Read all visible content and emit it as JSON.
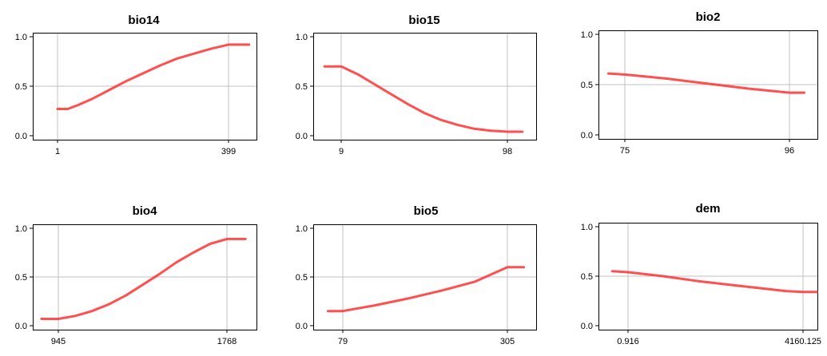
{
  "colors": {
    "curve": "#ff3030",
    "grid": "#c0c0c0",
    "axis": "#000000"
  },
  "chart_data": [
    {
      "type": "line",
      "title": "bio14",
      "xlabel": "",
      "ylabel": "",
      "x_ticks": [
        "1",
        "399"
      ],
      "y_ticks": [
        "0.0",
        "0.5",
        "1.0"
      ],
      "ylim": [
        0,
        1
      ],
      "grid": true,
      "x": [
        0.0,
        0.06,
        0.12,
        0.2,
        0.3,
        0.4,
        0.5,
        0.6,
        0.7,
        0.8,
        0.9,
        0.95,
        1.0,
        1.06,
        1.12
      ],
      "values": [
        0.27,
        0.27,
        0.31,
        0.37,
        0.46,
        0.55,
        0.63,
        0.71,
        0.78,
        0.83,
        0.88,
        0.9,
        0.92,
        0.92,
        0.92
      ]
    },
    {
      "type": "line",
      "title": "bio15",
      "xlabel": "",
      "ylabel": "",
      "x_ticks": [
        "9",
        "98"
      ],
      "y_ticks": [
        "0.0",
        "0.5",
        "1.0"
      ],
      "ylim": [
        0,
        1
      ],
      "grid": true,
      "x": [
        -0.1,
        0.0,
        0.1,
        0.2,
        0.3,
        0.4,
        0.5,
        0.6,
        0.7,
        0.8,
        0.9,
        1.0,
        1.09
      ],
      "values": [
        0.7,
        0.7,
        0.62,
        0.52,
        0.42,
        0.32,
        0.23,
        0.16,
        0.11,
        0.07,
        0.05,
        0.04,
        0.04
      ]
    },
    {
      "type": "line",
      "title": "bio2",
      "xlabel": "",
      "ylabel": "",
      "x_ticks": [
        "75",
        "96"
      ],
      "y_ticks": [
        "0.0",
        "0.5",
        "1.0"
      ],
      "ylim": [
        0,
        1
      ],
      "grid": true,
      "x": [
        -0.1,
        0.0,
        0.25,
        0.5,
        0.75,
        1.0,
        1.09
      ],
      "values": [
        0.61,
        0.6,
        0.56,
        0.51,
        0.46,
        0.42,
        0.42
      ]
    },
    {
      "type": "line",
      "title": "bio4",
      "xlabel": "",
      "ylabel": "",
      "x_ticks": [
        "945",
        "1768"
      ],
      "y_ticks": [
        "0.0",
        "0.5",
        "1.0"
      ],
      "ylim": [
        0,
        1
      ],
      "grid": true,
      "x": [
        -0.1,
        0.0,
        0.1,
        0.2,
        0.3,
        0.4,
        0.5,
        0.6,
        0.7,
        0.8,
        0.9,
        1.0,
        1.11
      ],
      "values": [
        0.07,
        0.07,
        0.1,
        0.15,
        0.22,
        0.31,
        0.42,
        0.53,
        0.65,
        0.75,
        0.84,
        0.89,
        0.89
      ]
    },
    {
      "type": "line",
      "title": "bio5",
      "xlabel": "",
      "ylabel": "",
      "x_ticks": [
        "79",
        "305"
      ],
      "y_ticks": [
        "0.0",
        "0.5",
        "1.0"
      ],
      "ylim": [
        0,
        1
      ],
      "grid": true,
      "x": [
        -0.09,
        0.0,
        0.2,
        0.4,
        0.6,
        0.8,
        1.0,
        1.1
      ],
      "values": [
        0.15,
        0.15,
        0.21,
        0.28,
        0.36,
        0.45,
        0.6,
        0.6
      ]
    },
    {
      "type": "line",
      "title": "dem",
      "xlabel": "",
      "ylabel": "",
      "x_ticks": [
        "0.916",
        "4160.125"
      ],
      "y_ticks": [
        "0.0",
        "0.5",
        "1.0"
      ],
      "ylim": [
        0,
        1
      ],
      "grid": true,
      "x": [
        -0.09,
        0.0,
        0.2,
        0.4,
        0.6,
        0.8,
        0.9,
        1.0,
        1.08
      ],
      "values": [
        0.55,
        0.54,
        0.5,
        0.45,
        0.41,
        0.37,
        0.35,
        0.34,
        0.34
      ]
    }
  ]
}
